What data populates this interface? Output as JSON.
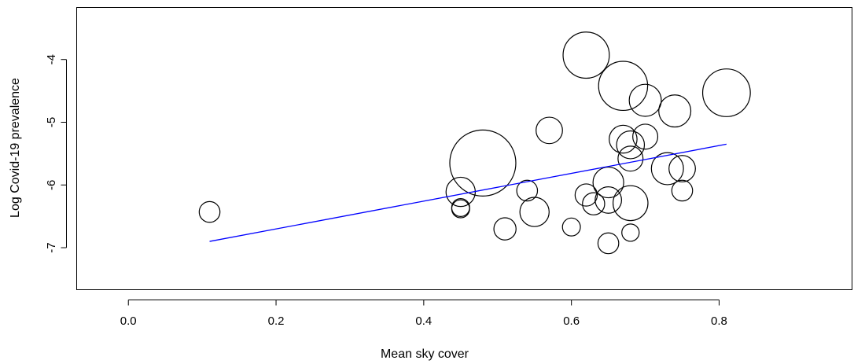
{
  "chart_data": {
    "type": "scatter",
    "title": "",
    "xlabel": "Mean sky cover",
    "ylabel": "Log Covid-19 prevalence",
    "xlim": [
      -0.07,
      0.98
    ],
    "ylim": [
      -7.67,
      -3.17
    ],
    "x_ticks": [
      "0.0",
      "0.2",
      "0.4",
      "0.6",
      "0.8"
    ],
    "y_ticks": [
      "-4",
      "-5",
      "-6",
      "-7"
    ],
    "grid": false,
    "marker": "open circle, size proportional to weight",
    "points": [
      {
        "x": 0.11,
        "y": -6.43,
        "size": 0.4
      },
      {
        "x": 0.45,
        "y": -6.11,
        "size": 0.7
      },
      {
        "x": 0.45,
        "y": -6.36,
        "size": 0.3
      },
      {
        "x": 0.45,
        "y": -6.38,
        "size": 0.3
      },
      {
        "x": 0.48,
        "y": -5.65,
        "size": 2.0
      },
      {
        "x": 0.51,
        "y": -6.7,
        "size": 0.45
      },
      {
        "x": 0.54,
        "y": -6.09,
        "size": 0.4
      },
      {
        "x": 0.55,
        "y": -6.43,
        "size": 0.7
      },
      {
        "x": 0.57,
        "y": -5.13,
        "size": 0.6
      },
      {
        "x": 0.6,
        "y": -6.67,
        "size": 0.3
      },
      {
        "x": 0.62,
        "y": -3.93,
        "size": 1.3
      },
      {
        "x": 0.62,
        "y": -6.16,
        "size": 0.45
      },
      {
        "x": 0.63,
        "y": -6.3,
        "size": 0.45
      },
      {
        "x": 0.65,
        "y": -5.96,
        "size": 0.75
      },
      {
        "x": 0.65,
        "y": -6.24,
        "size": 0.6
      },
      {
        "x": 0.65,
        "y": -6.93,
        "size": 0.4
      },
      {
        "x": 0.67,
        "y": -4.42,
        "size": 1.4
      },
      {
        "x": 0.67,
        "y": -5.27,
        "size": 0.65
      },
      {
        "x": 0.68,
        "y": -5.36,
        "size": 0.65
      },
      {
        "x": 0.68,
        "y": -5.58,
        "size": 0.55
      },
      {
        "x": 0.68,
        "y": -6.29,
        "size": 0.9
      },
      {
        "x": 0.68,
        "y": -6.76,
        "size": 0.28
      },
      {
        "x": 0.7,
        "y": -4.65,
        "size": 0.8
      },
      {
        "x": 0.7,
        "y": -5.23,
        "size": 0.55
      },
      {
        "x": 0.73,
        "y": -5.74,
        "size": 0.8
      },
      {
        "x": 0.74,
        "y": -4.82,
        "size": 0.8
      },
      {
        "x": 0.75,
        "y": -5.74,
        "size": 0.6
      },
      {
        "x": 0.75,
        "y": -6.09,
        "size": 0.4
      },
      {
        "x": 0.81,
        "y": -4.53,
        "size": 1.35
      }
    ],
    "series": [
      {
        "type": "line",
        "color": "#0000ff",
        "x": [
          0.11,
          0.81
        ],
        "y": [
          -6.9,
          -5.35
        ]
      }
    ]
  }
}
